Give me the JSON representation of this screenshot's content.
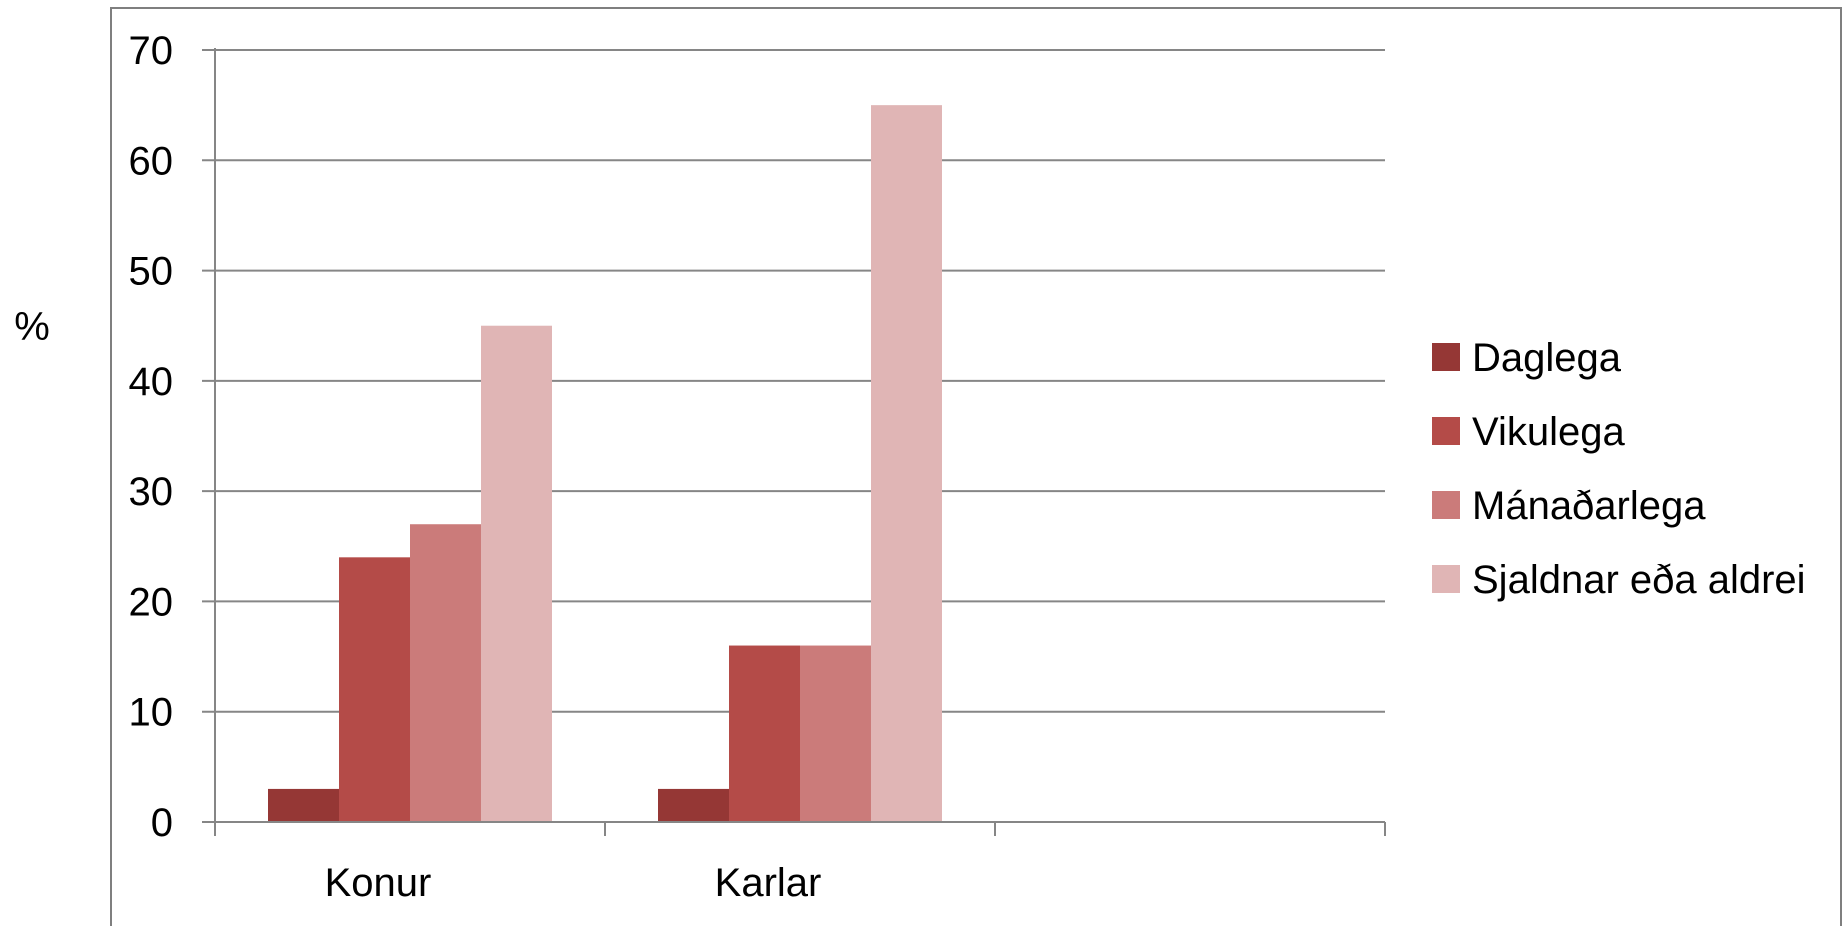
{
  "chart_data": {
    "type": "bar",
    "ylabel": "%",
    "ylim": [
      0,
      70
    ],
    "yticks": [
      0,
      10,
      20,
      30,
      40,
      50,
      60,
      70
    ],
    "categories": [
      "Konur",
      "Karlar",
      ""
    ],
    "series": [
      {
        "name": "Daglega",
        "color": "#953735",
        "values": [
          3,
          3,
          null
        ]
      },
      {
        "name": "Vikulega",
        "color": "#b44b48",
        "values": [
          24,
          16,
          null
        ]
      },
      {
        "name": "Mánaðarlega",
        "color": "#cb7b7a",
        "values": [
          27,
          16,
          null
        ]
      },
      {
        "name": "Sjaldnar eða aldrei",
        "color": "#e0b5b5",
        "values": [
          45,
          65,
          null
        ]
      }
    ],
    "grid": true,
    "legend": "right"
  }
}
